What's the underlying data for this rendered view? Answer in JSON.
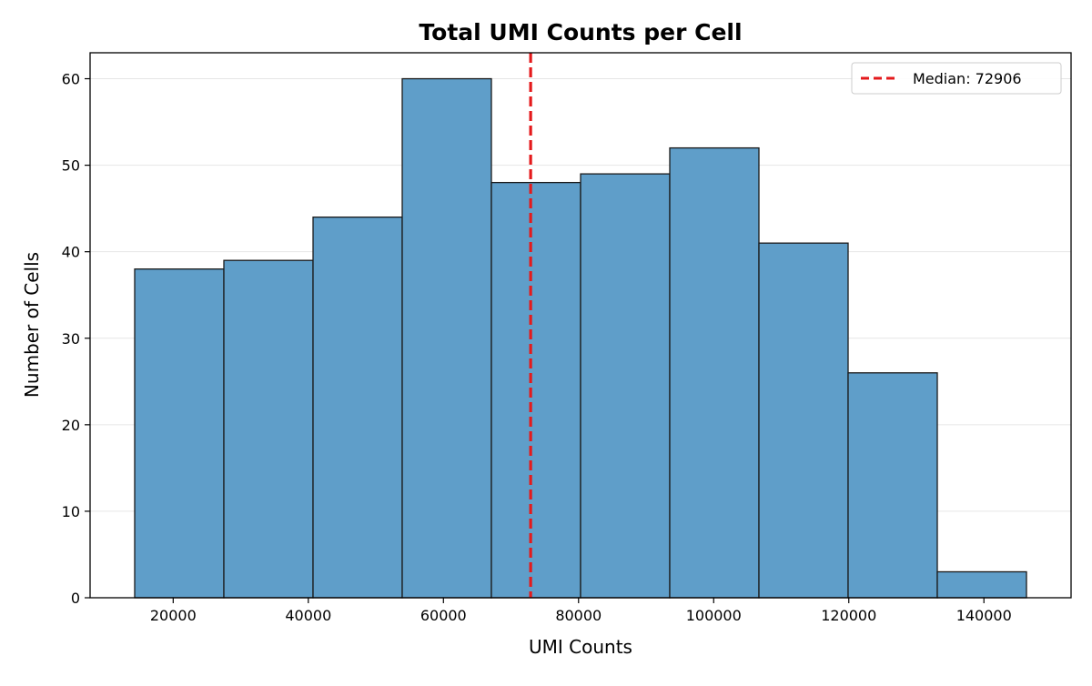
{
  "chart_data": {
    "type": "bar",
    "title": "Total UMI Counts per Cell",
    "xlabel": "UMI Counts",
    "ylabel": "Number of Cells",
    "bin_edges": [
      14300,
      27500,
      40700,
      53900,
      67100,
      80300,
      93500,
      106700,
      119900,
      133100,
      146300
    ],
    "values": [
      38,
      39,
      44,
      60,
      48,
      49,
      52,
      41,
      26,
      3
    ],
    "xlim": [
      7700,
      152900
    ],
    "ylim": [
      0,
      63
    ],
    "xticks": [
      20000,
      40000,
      60000,
      80000,
      100000,
      120000,
      140000
    ],
    "yticks": [
      0,
      10,
      20,
      30,
      40,
      50,
      60
    ],
    "grid": "y",
    "bar_color": "#5f9ec9",
    "edge_color": "#1a1a1a",
    "reference_line": {
      "value": 72906,
      "label": "Median: 72906",
      "color": "#e41a1c",
      "style": "dashed"
    },
    "legend_position": "top-right"
  }
}
